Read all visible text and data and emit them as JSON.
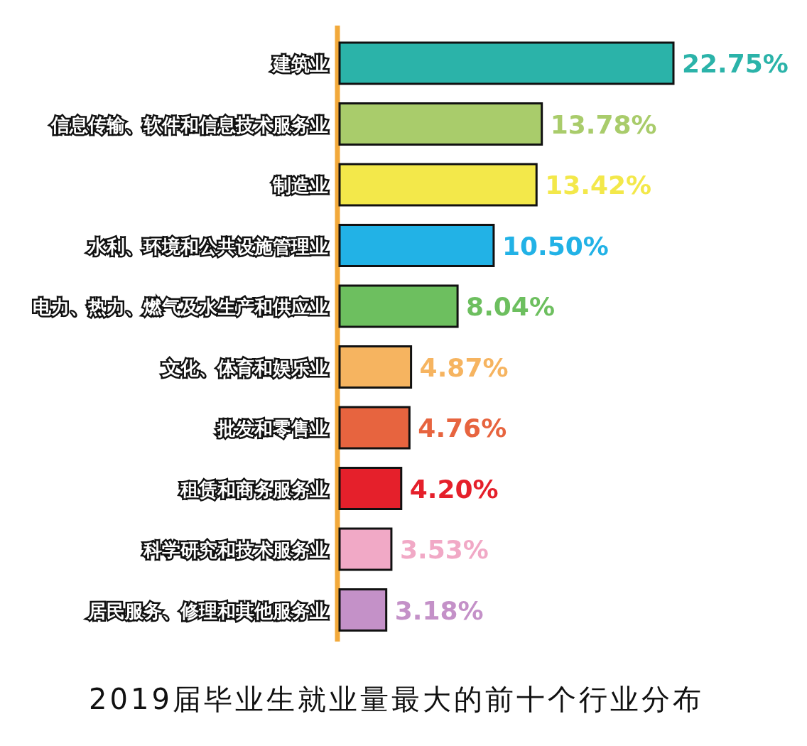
{
  "chart_data": {
    "type": "bar",
    "orientation": "horizontal",
    "title": "2019届毕业生就业量最大的前十个行业分布",
    "categories": [
      "建筑业",
      "信息传输、软件和信息技术服务业",
      "制造业",
      "水利、环境和公共设施管理业",
      "电力、热力、燃气及水生产和供应业",
      "文化、体育和娱乐业",
      "批发和零售业",
      "租赁和商务服务业",
      "科学研究和技术服务业",
      "居民服务、修理和其他服务业"
    ],
    "values": [
      22.75,
      13.78,
      13.42,
      10.5,
      8.04,
      4.87,
      4.76,
      4.2,
      3.53,
      3.18
    ],
    "value_labels": [
      "22.75%",
      "13.78%",
      "13.42%",
      "10.50%",
      "8.04%",
      "4.87%",
      "4.76%",
      "4.20%",
      "3.53%",
      "3.18%"
    ],
    "colors": [
      "#2bb3a9",
      "#a9cc6b",
      "#f3e84a",
      "#22b2e6",
      "#6dbf5f",
      "#f6b460",
      "#e7643f",
      "#e5202b",
      "#f1a9c6",
      "#c491c8"
    ]
  }
}
